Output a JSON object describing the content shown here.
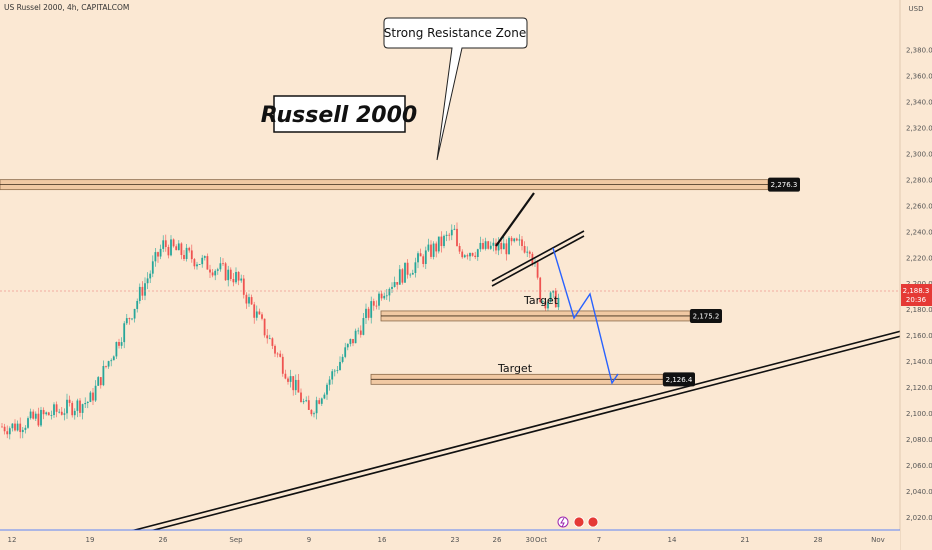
{
  "header": {
    "symbol_line": "US Russel 2000, 4h, CAPITALCOM",
    "currency": "USD"
  },
  "title": "Russell 2000",
  "callout": "Strong Resistance Zone",
  "targets": [
    "Target",
    "Target"
  ],
  "colors": {
    "background": "#fbe8d3",
    "up": "#26a69a",
    "down": "#ef5350",
    "zone": "#f1c9a3",
    "projection": "#2962ff",
    "current_price_tag": "#e53935"
  },
  "chart_data": {
    "type": "candlestick",
    "instrument": "US Russel 2000",
    "timeframe": "4h",
    "source": "CAPITALCOM",
    "ylim": [
      2015,
      2400
    ],
    "y_ticks": [
      "2,020.0",
      "2,040.0",
      "2,060.0",
      "2,080.0",
      "2,100.0",
      "2,120.0",
      "2,140.0",
      "2,160.0",
      "2,180.0",
      "2,200.0",
      "2,220.0",
      "2,240.0",
      "2,260.0",
      "2,280.0",
      "2,300.0",
      "2,320.0",
      "2,340.0",
      "2,360.0",
      "2,380.0"
    ],
    "x_ticks": [
      "12",
      "19",
      "26",
      "Sep",
      "9",
      "16",
      "23",
      "26",
      "30",
      "Oct",
      "7",
      "14",
      "21",
      "28",
      "Nov"
    ],
    "levels": [
      {
        "label": "2,276.3",
        "value": 2276.3,
        "kind": "resistance"
      },
      {
        "label": "2,175.2",
        "value": 2175.2,
        "kind": "target"
      },
      {
        "label": "2,126.4",
        "value": 2126.4,
        "kind": "target"
      }
    ],
    "current_price": {
      "label": "2,188.3",
      "value": 2188.3,
      "countdown": "20:36"
    },
    "path": [
      [
        "12",
        2090
      ],
      [
        "19",
        2110
      ],
      [
        "26",
        2230
      ],
      [
        "Sep",
        2205
      ],
      [
        "9",
        2100
      ],
      [
        "16",
        2195
      ],
      [
        "23",
        2240
      ],
      [
        "26",
        2205
      ],
      [
        "30",
        2230
      ],
      [
        "Oct",
        2188
      ]
    ],
    "projection": [
      2190,
      2170,
      2185,
      2126
    ],
    "uptrend_line": {
      "from": [
        "19",
        2015
      ],
      "to": [
        "Nov",
        2160
      ]
    }
  }
}
